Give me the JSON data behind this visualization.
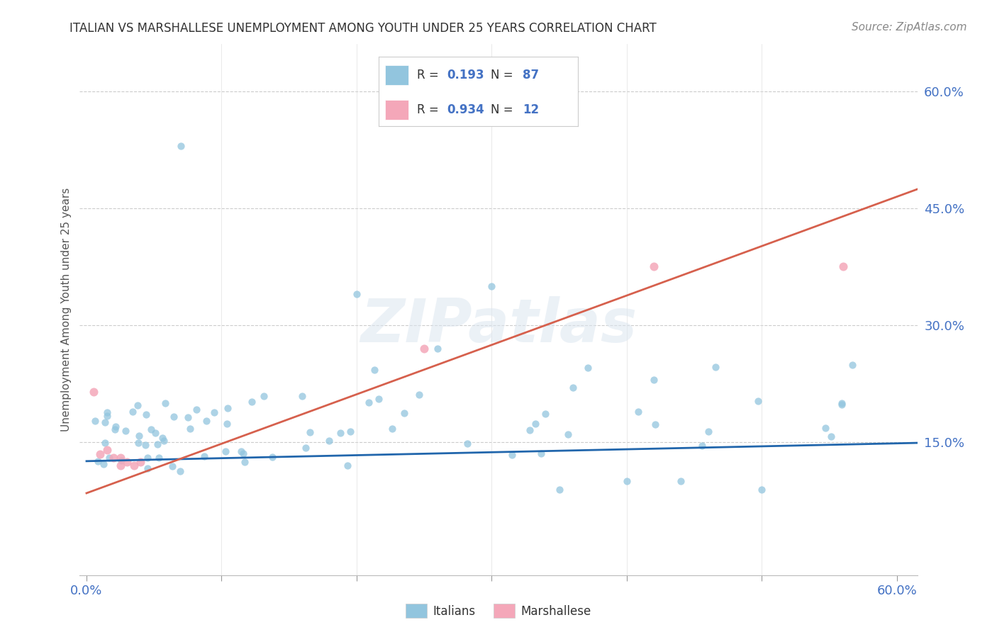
{
  "title": "ITALIAN VS MARSHALLESE UNEMPLOYMENT AMONG YOUTH UNDER 25 YEARS CORRELATION CHART",
  "source": "Source: ZipAtlas.com",
  "ylabel": "Unemployment Among Youth under 25 years",
  "xlim": [
    0.0,
    0.6
  ],
  "ylim": [
    0.0,
    0.65
  ],
  "ytick_right_vals": [
    0.15,
    0.3,
    0.45,
    0.6
  ],
  "ytick_right_labels": [
    "15.0%",
    "30.0%",
    "45.0%",
    "60.0%"
  ],
  "r_italian": 0.193,
  "n_italian": 87,
  "r_marshallese": 0.934,
  "n_marshallese": 12,
  "color_italian": "#92c5de",
  "color_marshallese": "#f4a7b9",
  "color_trendline_italian": "#2166ac",
  "color_trendline_marshallese": "#d6604d",
  "watermark": "ZIPatlas",
  "ital_slope": 0.038,
  "ital_intercept": 0.126,
  "marsh_slope": 0.633,
  "marsh_intercept": 0.085
}
